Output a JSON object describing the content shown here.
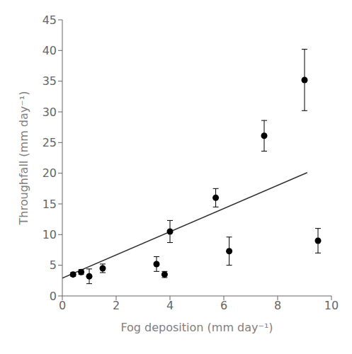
{
  "chart_data": {
    "type": "scatter",
    "xlabel": "Fog deposition (mm day⁻¹)",
    "ylabel": "Throughfall (mm day⁻¹)",
    "xlim": [
      0,
      10
    ],
    "ylim": [
      0,
      45
    ],
    "xticks": [
      0,
      2,
      4,
      6,
      8,
      10
    ],
    "yticks": [
      0,
      5,
      10,
      15,
      20,
      25,
      30,
      35,
      40,
      45
    ],
    "grid": false,
    "series": [
      {
        "type": "line",
        "color": "#333333",
        "x": [
          0.0,
          9.1
        ],
        "values": [
          2.91,
          20.109
        ]
      },
      {
        "type": "scatter",
        "color": "black",
        "x": [
          0.4,
          0.7,
          1.0,
          1.5,
          3.5,
          3.8,
          4.0,
          5.7,
          6.2,
          7.5,
          9.0,
          9.5
        ],
        "values": [
          3.5,
          3.9,
          3.2,
          4.5,
          5.2,
          3.5,
          10.5,
          16.0,
          7.3,
          26.1,
          35.2,
          9.0
        ],
        "yerr": [
          0.3,
          0.4,
          1.2,
          0.7,
          1.2,
          0.5,
          1.8,
          1.5,
          2.3,
          2.5,
          5.0,
          2.0
        ]
      }
    ]
  }
}
